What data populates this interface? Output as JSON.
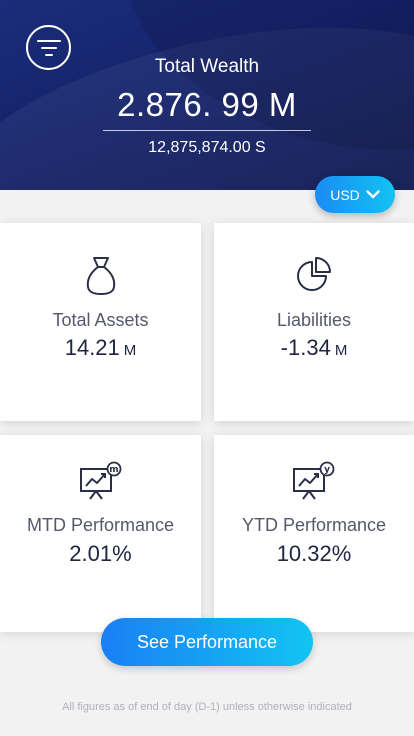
{
  "header": {
    "title": "Total Wealth",
    "value": "2.876. 99 M",
    "subvalue": "12,875,874.00 S"
  },
  "currency": {
    "label": "USD"
  },
  "cards": [
    {
      "label": "Total Assets",
      "value": "14.21",
      "unit": "M",
      "icon": "money-bag-icon"
    },
    {
      "label": "Liabilities",
      "value": "-1.34",
      "unit": "M",
      "icon": "pie-chart-icon"
    },
    {
      "label": "MTD Performance",
      "value": "2.01%",
      "badge": "m",
      "icon": "presentation-chart-icon"
    },
    {
      "label": "YTD Performance",
      "value": "10.32%",
      "badge": "y",
      "icon": "presentation-chart-icon"
    }
  ],
  "cta": {
    "label": "See Performance"
  },
  "footnote": "All figures as of end of day (D-1) unless otherwise indicated",
  "colors": {
    "header": "#15226a",
    "accent": "#1a8cf5",
    "accent_end": "#12c4f2"
  }
}
